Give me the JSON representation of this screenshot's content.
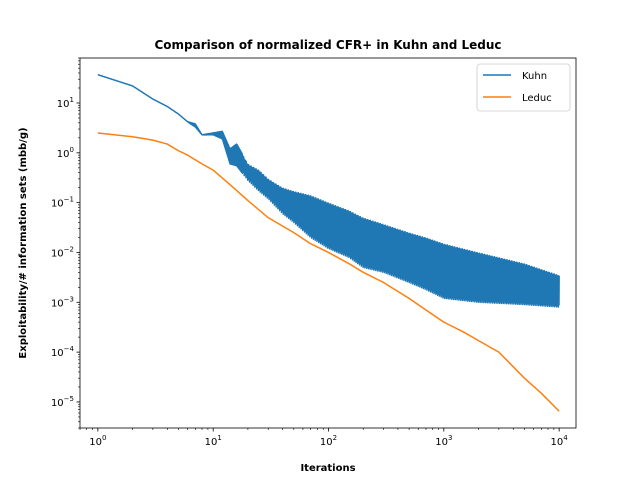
{
  "chart_data": {
    "type": "line",
    "title": "Comparison of normalized CFR+ in Kuhn and Leduc",
    "xlabel": "Iterations",
    "ylabel": "Exploitability/# information sets (mbb/g)",
    "xscale": "log",
    "yscale": "log",
    "xlim": [
      0.7,
      14000
    ],
    "ylim": [
      3e-06,
      80
    ],
    "x_ticks": [
      {
        "value": 1,
        "base": "10",
        "exp": "0"
      },
      {
        "value": 10,
        "base": "10",
        "exp": "1"
      },
      {
        "value": 100,
        "base": "10",
        "exp": "2"
      },
      {
        "value": 1000,
        "base": "10",
        "exp": "3"
      },
      {
        "value": 10000,
        "base": "10",
        "exp": "4"
      }
    ],
    "y_ticks": [
      {
        "value": 1e-05,
        "base": "10",
        "exp": "−5"
      },
      {
        "value": 0.0001,
        "base": "10",
        "exp": "−4"
      },
      {
        "value": 0.001,
        "base": "10",
        "exp": "−3"
      },
      {
        "value": 0.01,
        "base": "10",
        "exp": "−2"
      },
      {
        "value": 0.1,
        "base": "10",
        "exp": "−1"
      },
      {
        "value": 1,
        "base": "10",
        "exp": "0"
      },
      {
        "value": 10,
        "base": "10",
        "exp": "1"
      }
    ],
    "grid": false,
    "legend_position": "top-right",
    "series": [
      {
        "name": "Kuhn",
        "color": "#1f77b4",
        "style": "oscillating band between lower and upper envelopes from about 20 iterations onward",
        "x": [
          1,
          2,
          3,
          4,
          5,
          6,
          7,
          8,
          10,
          12,
          14,
          16,
          20,
          25,
          30,
          40,
          50,
          70,
          100,
          150,
          200,
          300,
          500,
          700,
          1000,
          2000,
          5000,
          10000
        ],
        "upper": [
          37,
          22,
          12,
          8.5,
          6,
          4.2,
          3.8,
          2.3,
          2.5,
          2.7,
          1.2,
          1.5,
          0.6,
          0.45,
          0.3,
          0.2,
          0.17,
          0.14,
          0.1,
          0.07,
          0.05,
          0.037,
          0.025,
          0.02,
          0.015,
          0.01,
          0.006,
          0.0035
        ],
        "lower": [
          37,
          22,
          12,
          8.5,
          6,
          4.2,
          3.3,
          2.3,
          2.3,
          1.9,
          0.6,
          0.55,
          0.28,
          0.17,
          0.12,
          0.06,
          0.04,
          0.02,
          0.012,
          0.008,
          0.005,
          0.004,
          0.0025,
          0.0018,
          0.0012,
          0.001,
          0.0009,
          0.0008
        ]
      },
      {
        "name": "Leduc",
        "color": "#ff7f0e",
        "x": [
          1,
          2,
          3,
          4,
          5,
          6,
          8,
          10,
          15,
          20,
          30,
          50,
          70,
          100,
          150,
          200,
          300,
          500,
          700,
          1000,
          1500,
          2000,
          3000,
          5000,
          7000,
          10000
        ],
        "y": [
          2.5,
          2.1,
          1.8,
          1.5,
          1.1,
          0.9,
          0.6,
          0.45,
          0.2,
          0.11,
          0.05,
          0.025,
          0.015,
          0.01,
          0.006,
          0.004,
          0.0025,
          0.0012,
          0.0007,
          0.0004,
          0.00025,
          0.00017,
          0.0001,
          3e-05,
          1.5e-05,
          6.5e-06
        ]
      }
    ]
  }
}
